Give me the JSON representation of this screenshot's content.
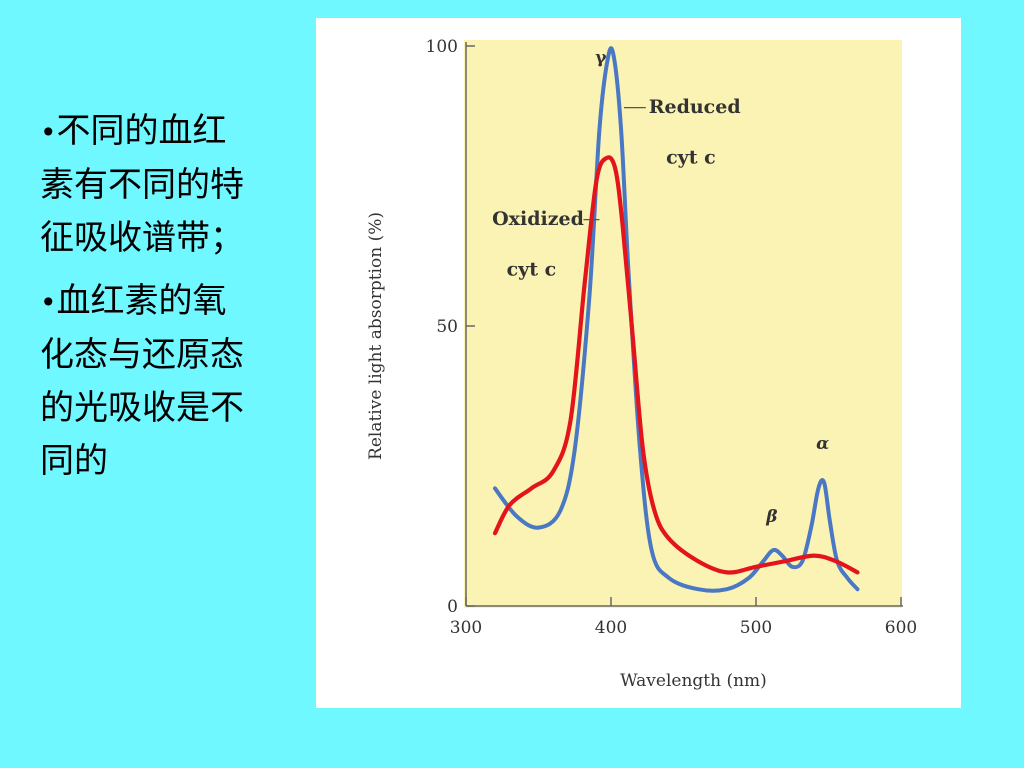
{
  "bullets": [
    "不同的血红素有不同的特征吸收谱带；",
    "血红素的氧化态与还原态的光吸收是不同的"
  ],
  "colors": {
    "background": "#6ff8ff",
    "plot_area": "#fbf3b4",
    "reduced_series": "#4a78c4",
    "oxidized_series": "#e3141c"
  },
  "chart_data": {
    "type": "line",
    "title": "",
    "xlabel": "Wavelength (nm)",
    "ylabel": "Relative light absorption (%)",
    "xlim": [
      300,
      600
    ],
    "ylim": [
      0,
      100
    ],
    "x_ticks": [
      "300",
      "400",
      "500",
      "600"
    ],
    "y_ticks": [
      "0",
      "50",
      "100"
    ],
    "grid": false,
    "series": [
      {
        "name": "Reduced cyt c",
        "x": [
          320,
          335,
          350,
          365,
          375,
          385,
          392,
          398,
          402,
          407,
          412,
          420,
          428,
          440,
          460,
          480,
          495,
          505,
          512,
          518,
          525,
          532,
          538,
          543,
          547,
          551,
          556,
          563,
          570
        ],
        "y": [
          21,
          16,
          14,
          17,
          28,
          55,
          85,
          98,
          98,
          85,
          60,
          28,
          10,
          5,
          3,
          3,
          5,
          8,
          10,
          9,
          7,
          8,
          14,
          21,
          22,
          15,
          8,
          5,
          3
        ]
      },
      {
        "name": "Oxidized cyt c",
        "x": [
          320,
          330,
          345,
          360,
          372,
          382,
          390,
          397,
          403,
          408,
          415,
          422,
          430,
          440,
          460,
          480,
          500,
          520,
          540,
          555,
          570
        ],
        "y": [
          13,
          18,
          21,
          24,
          33,
          58,
          76,
          80,
          78,
          68,
          48,
          28,
          17,
          12,
          8,
          6,
          7,
          8,
          9,
          8,
          6
        ]
      }
    ],
    "annotations": {
      "gamma": "γ",
      "beta": "β",
      "alpha": "α",
      "reduced_line1": "Reduced",
      "reduced_line2": "cyt c",
      "oxidized_line1": "Oxidized",
      "oxidized_line2": "cyt c"
    }
  }
}
